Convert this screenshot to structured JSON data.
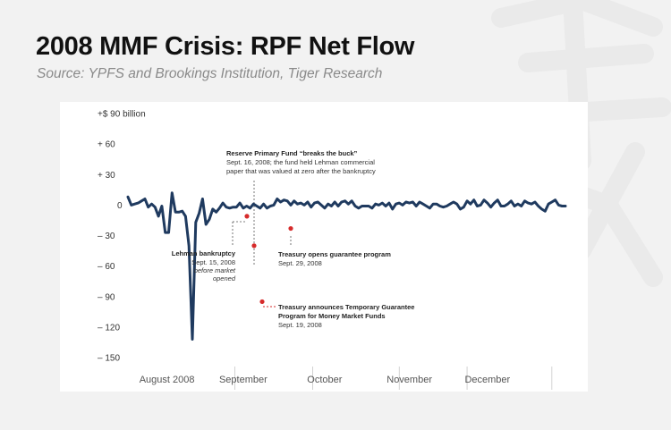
{
  "header": {
    "title": "2008 MMF Crisis: RPF Net Flow",
    "subtitle": "Source: YPFS and Brookings Institution, Tiger Research"
  },
  "colors": {
    "line": "#1f3a5f",
    "marker": "#d62b2b",
    "accent_dash": "#d62b2b",
    "page_background": "#f2f2f2",
    "panel_background": "#ffffff"
  },
  "chart_data": {
    "type": "line",
    "ylim": [
      -150,
      90
    ],
    "y_ticks": [
      {
        "value": 90,
        "label": "+$  90 billion"
      },
      {
        "value": 60,
        "label": "+   60"
      },
      {
        "value": 30,
        "label": "+   30"
      },
      {
        "value": 0,
        "label": "0"
      },
      {
        "value": -30,
        "label": "–   30"
      },
      {
        "value": -60,
        "label": "–   60"
      },
      {
        "value": -90,
        "label": "–   90"
      },
      {
        "value": -120,
        "label": "–  120"
      },
      {
        "value": -150,
        "label": "–  150"
      }
    ],
    "x_labels": [
      {
        "x": 11.5,
        "label": "August 2008"
      },
      {
        "x": 34,
        "label": "September"
      },
      {
        "x": 58,
        "label": "October"
      },
      {
        "x": 83,
        "label": "November"
      },
      {
        "x": 106,
        "label": "December"
      }
    ],
    "grid": false,
    "series": [
      {
        "values": [
          8,
          -1,
          0,
          1,
          0,
          2,
          -2,
          4,
          6,
          -12,
          -2,
          6,
          1,
          5,
          -2,
          -11,
          0,
          -1,
          1,
          -27,
          -27,
          18,
          12,
          0,
          -7,
          -7,
          1,
          -6,
          -3,
          -11,
          -63,
          -40,
          -132,
          -58,
          -17,
          -8,
          -8,
          6,
          -22,
          -19,
          -27,
          -14,
          -4,
          -7,
          -7,
          -3,
          -3,
          -1,
          2,
          -2,
          -4,
          -3,
          1,
          -2,
          -2,
          -6,
          2,
          0,
          -3,
          -1,
          -1,
          -3,
          -1,
          1,
          1,
          -1,
          -3,
          -1,
          1,
          -1,
          -3,
          -1,
          -1,
          0,
          -3,
          6,
          3,
          3,
          5,
          -3,
          4,
          0,
          3,
          4,
          3,
          1,
          2,
          2,
          0,
          3,
          3,
          -1,
          -2,
          2,
          5,
          3,
          -3,
          0,
          -3,
          -1,
          1,
          1,
          -1,
          -2,
          3,
          -1,
          -1,
          3,
          1,
          4,
          1,
          1,
          4,
          -1,
          -1,
          -3,
          5,
          -1,
          0,
          -1,
          -5,
          -1,
          -3,
          7,
          1,
          4,
          0,
          2,
          -1,
          -1,
          -3,
          2,
          -4,
          4,
          1,
          0,
          2,
          -1,
          0,
          3,
          6,
          2,
          -2,
          3,
          -1,
          -2,
          3,
          2,
          1,
          -1,
          -4,
          -3,
          0,
          1,
          1,
          2,
          -1,
          -3,
          -2,
          0,
          -1,
          1,
          2,
          3,
          1,
          1,
          -4,
          -2,
          -2,
          3,
          4,
          1,
          0,
          5,
          6,
          -1,
          -5,
          0,
          5,
          9,
          2,
          -3,
          -2,
          2,
          6,
          5,
          2,
          -1,
          -1,
          -1,
          1,
          2,
          4,
          3,
          -1,
          1,
          -3,
          -1,
          14,
          4,
          2,
          7,
          1,
          -2,
          3,
          -1,
          -3,
          -4,
          -1,
          -6,
          -2,
          1,
          3,
          2,
          5,
          1,
          0,
          -1,
          -4,
          -1
        ]
      }
    ],
    "annotations": [
      {
        "title": "Reserve Primary Fund “breaks the buck”",
        "lines": [
          "Sept. 16, 2008;  the fund held Lehman commercial",
          "paper that was valued at zero after the bankruptcy"
        ],
        "date": "Sept. 16, 2008"
      },
      {
        "title": "Lehman bankruptcy",
        "lines": [
          "Sept. 15, 2008"
        ],
        "italic_lines": [
          "before market",
          "opened"
        ],
        "value": -11
      },
      {
        "title": "Treasury opens guarantee program",
        "lines": [
          "Sept. 29, 2008"
        ],
        "value": -23
      },
      {
        "title": "Treasury announces Temporary Guarantee",
        "title2": "Program for Money Market Funds",
        "lines": [
          "Sept. 19, 2008"
        ],
        "value": -95
      }
    ]
  }
}
